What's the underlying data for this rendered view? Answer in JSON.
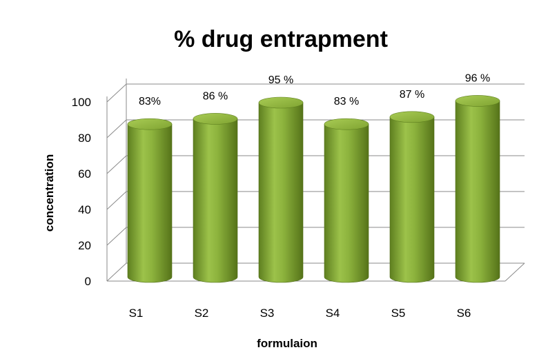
{
  "chart_data": {
    "type": "bar",
    "title": "% drug entrapment",
    "xlabel": "formulaion",
    "ylabel": "concentration",
    "categories": [
      "S1",
      "S2",
      "S3",
      "S4",
      "S5",
      "S6"
    ],
    "values": [
      83,
      86,
      95,
      83,
      87,
      96
    ],
    "data_labels": [
      "83%",
      "86 %",
      "95 %",
      "83 %",
      "87 %",
      "96 %"
    ],
    "yticks": [
      "0",
      "20",
      "40",
      "60",
      "80",
      "100"
    ],
    "ylim": [
      0,
      100
    ],
    "grid": true,
    "style": "3d-cylinder",
    "colors": {
      "bar": "#8db33d",
      "bar_dark": "#5e7f1f",
      "bar_top": "#9fc24a"
    }
  }
}
